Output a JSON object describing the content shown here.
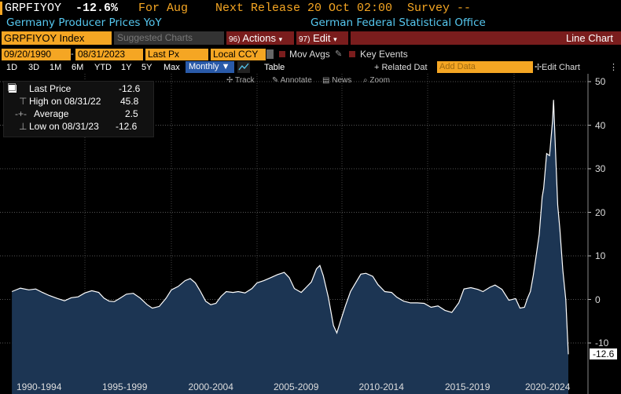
{
  "header": {
    "ticker": "GRPFIYOY",
    "last_value": "-12.6%",
    "for_label": "For Aug",
    "next_release": "Next Release 20 Oct 02:00",
    "survey": "Survey --",
    "description": "Germany Producer Prices YoY",
    "source": "German Federal Statistical Office"
  },
  "toolbar": {
    "index_label": "GRPFIYOY Index",
    "suggested_charts": "Suggested Charts",
    "actions_num": "96)",
    "actions_label": "Actions",
    "edit_num": "97)",
    "edit_label": "Edit",
    "chart_type": "Line Chart"
  },
  "settings": {
    "start_date": "09/20/1990",
    "end_date": "08/31/2023",
    "price_type": "Last Px",
    "currency": "Local CCY",
    "mov_avgs": "Mov Avgs",
    "key_events": "Key Events"
  },
  "periods": {
    "items": [
      "1D",
      "3D",
      "1M",
      "6M",
      "YTD",
      "1Y",
      "5Y",
      "Max"
    ],
    "frequency": "Monthly",
    "table": "Table",
    "related_data": "+ Related Dat",
    "add_data_placeholder": "Add Data",
    "edit_chart": "Edit Chart"
  },
  "tools": {
    "track": "Track",
    "annotate": "Annotate",
    "news": "News",
    "zoom": "Zoom"
  },
  "legend": {
    "last_price_label": "Last Price",
    "last_price_value": "-12.6",
    "high_label": "High on 08/31/22",
    "high_value": "45.8",
    "average_label": "Average",
    "average_value": "2.5",
    "low_label": "Low on 08/31/23",
    "low_value": "-12.6"
  },
  "colors": {
    "accent_orange": "#f5a623",
    "header_cyan": "#56c8f0",
    "area_fill": "#1c3553",
    "line": "#ffffff"
  },
  "chart_data": {
    "type": "area",
    "x_start": "1990-09",
    "x_end": "2023-08",
    "xticks": [
      "1990-1994",
      "1995-1999",
      "2000-2004",
      "2005-2009",
      "2010-2014",
      "2015-2019",
      "2020-2024"
    ],
    "yticks": [
      50,
      40,
      30,
      20,
      10,
      0,
      -10
    ],
    "ylim": [
      -18,
      51
    ],
    "last_value_label": "-12.6",
    "points": [
      [
        1990.7,
        1.8
      ],
      [
        1991.2,
        2.6
      ],
      [
        1991.7,
        2.2
      ],
      [
        1992.1,
        2.4
      ],
      [
        1992.5,
        1.6
      ],
      [
        1992.9,
        0.9
      ],
      [
        1993.4,
        0.2
      ],
      [
        1993.8,
        -0.3
      ],
      [
        1994.2,
        0.4
      ],
      [
        1994.6,
        0.6
      ],
      [
        1995.0,
        1.5
      ],
      [
        1995.4,
        2.0
      ],
      [
        1995.8,
        1.6
      ],
      [
        1996.1,
        0.3
      ],
      [
        1996.4,
        -0.4
      ],
      [
        1996.7,
        -0.5
      ],
      [
        1997.0,
        0.2
      ],
      [
        1997.4,
        1.2
      ],
      [
        1997.8,
        1.4
      ],
      [
        1998.2,
        0.3
      ],
      [
        1998.6,
        -1.2
      ],
      [
        1998.9,
        -2.0
      ],
      [
        1999.3,
        -1.6
      ],
      [
        1999.7,
        0.3
      ],
      [
        2000.0,
        2.2
      ],
      [
        2000.4,
        3.0
      ],
      [
        2000.8,
        4.3
      ],
      [
        2001.1,
        4.8
      ],
      [
        2001.4,
        3.8
      ],
      [
        2001.7,
        1.8
      ],
      [
        2002.0,
        -0.4
      ],
      [
        2002.3,
        -1.2
      ],
      [
        2002.6,
        -0.9
      ],
      [
        2002.9,
        0.7
      ],
      [
        2003.2,
        1.8
      ],
      [
        2003.6,
        1.6
      ],
      [
        2003.9,
        1.8
      ],
      [
        2004.3,
        1.5
      ],
      [
        2004.7,
        2.5
      ],
      [
        2005.0,
        3.8
      ],
      [
        2005.4,
        4.3
      ],
      [
        2005.8,
        5.0
      ],
      [
        2006.2,
        5.7
      ],
      [
        2006.6,
        6.2
      ],
      [
        2006.9,
        5.0
      ],
      [
        2007.2,
        2.5
      ],
      [
        2007.6,
        1.6
      ],
      [
        2007.9,
        2.8
      ],
      [
        2008.2,
        4.0
      ],
      [
        2008.5,
        7.0
      ],
      [
        2008.7,
        7.8
      ],
      [
        2008.9,
        5.5
      ],
      [
        2009.2,
        0.5
      ],
      [
        2009.5,
        -6.0
      ],
      [
        2009.7,
        -7.7
      ],
      [
        2009.9,
        -5.2
      ],
      [
        2010.2,
        -1.5
      ],
      [
        2010.5,
        1.8
      ],
      [
        2010.8,
        3.8
      ],
      [
        2011.1,
        5.8
      ],
      [
        2011.4,
        6.0
      ],
      [
        2011.8,
        5.3
      ],
      [
        2012.1,
        3.4
      ],
      [
        2012.5,
        1.8
      ],
      [
        2012.9,
        1.6
      ],
      [
        2013.2,
        0.5
      ],
      [
        2013.6,
        -0.4
      ],
      [
        2014.0,
        -0.8
      ],
      [
        2014.4,
        -0.8
      ],
      [
        2014.8,
        -0.9
      ],
      [
        2015.2,
        -1.8
      ],
      [
        2015.6,
        -1.5
      ],
      [
        2016.0,
        -2.5
      ],
      [
        2016.4,
        -3.0
      ],
      [
        2016.8,
        -0.8
      ],
      [
        2017.1,
        2.4
      ],
      [
        2017.5,
        2.7
      ],
      [
        2017.9,
        2.3
      ],
      [
        2018.2,
        1.8
      ],
      [
        2018.6,
        2.8
      ],
      [
        2018.9,
        3.3
      ],
      [
        2019.3,
        2.3
      ],
      [
        2019.7,
        -0.2
      ],
      [
        2020.1,
        0.2
      ],
      [
        2020.4,
        -2.0
      ],
      [
        2020.7,
        -1.8
      ],
      [
        2020.9,
        0.2
      ],
      [
        2021.1,
        1.8
      ],
      [
        2021.3,
        5.5
      ],
      [
        2021.5,
        10.2
      ],
      [
        2021.7,
        15.0
      ],
      [
        2021.9,
        23.5
      ],
      [
        2022.0,
        25.5
      ],
      [
        2022.2,
        33.5
      ],
      [
        2022.4,
        33.0
      ],
      [
        2022.6,
        41.0
      ],
      [
        2022.67,
        45.8
      ],
      [
        2022.8,
        34.5
      ],
      [
        2022.95,
        21.6
      ],
      [
        2023.1,
        16.0
      ],
      [
        2023.3,
        6.7
      ],
      [
        2023.5,
        -0.1
      ],
      [
        2023.58,
        -6.0
      ],
      [
        2023.67,
        -12.6
      ]
    ]
  }
}
